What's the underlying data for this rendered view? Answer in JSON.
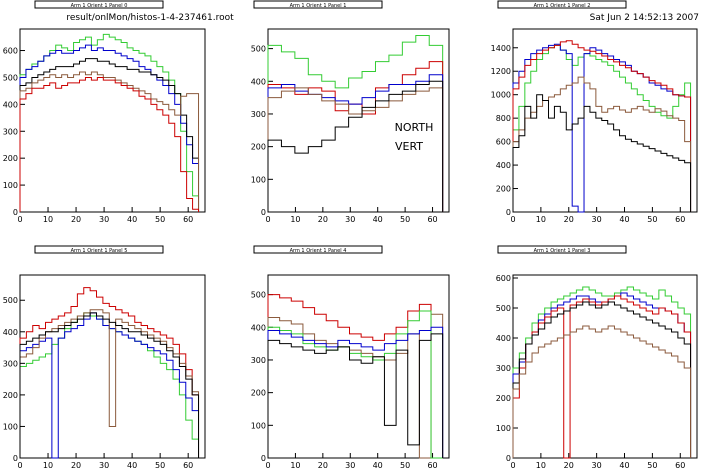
{
  "header": {
    "file": "result/onlMon/histos-1-4-237461.root",
    "date": "Sat Jun  2 14:52:13 2007"
  },
  "annotation": {
    "line1": "NORTH",
    "line2": "VERT"
  },
  "colors": {
    "black": "#000000",
    "red": "#cc0000",
    "green": "#33cc33",
    "blue": "#0000cc",
    "brown": "#8b5a3c"
  },
  "chart_data": [
    {
      "type": "line",
      "title": "Arm 1 Orient 1 Panel 0",
      "xlim": [
        0,
        66
      ],
      "ylim": [
        0,
        680
      ],
      "xticks": [
        0,
        10,
        20,
        30,
        40,
        50,
        60
      ],
      "yticks": [
        0,
        100,
        200,
        300,
        400,
        500,
        600
      ],
      "series": [
        {
          "color": "green",
          "values": [
            510,
            530,
            550,
            560,
            580,
            600,
            620,
            610,
            600,
            630,
            640,
            650,
            620,
            640,
            660,
            650,
            640,
            630,
            610,
            600,
            590,
            580,
            560,
            540,
            520,
            490,
            440,
            300,
            150,
            60
          ]
        },
        {
          "color": "blue",
          "values": [
            500,
            530,
            540,
            560,
            580,
            590,
            600,
            590,
            590,
            600,
            610,
            620,
            600,
            610,
            600,
            600,
            590,
            580,
            570,
            560,
            540,
            530,
            510,
            490,
            470,
            440,
            400,
            330,
            250,
            180
          ]
        },
        {
          "color": "black",
          "values": [
            470,
            480,
            500,
            510,
            520,
            530,
            540,
            540,
            540,
            550,
            560,
            570,
            570,
            560,
            560,
            550,
            540,
            540,
            530,
            530,
            520,
            520,
            510,
            500,
            490,
            470,
            440,
            360,
            280,
            200
          ]
        },
        {
          "color": "brown",
          "values": [
            450,
            460,
            480,
            490,
            500,
            510,
            500,
            510,
            500,
            510,
            520,
            510,
            520,
            510,
            500,
            500,
            490,
            480,
            470,
            460,
            450,
            440,
            420,
            410,
            400,
            380,
            360,
            430,
            440,
            440
          ]
        },
        {
          "color": "red",
          "values": [
            420,
            440,
            460,
            460,
            470,
            480,
            460,
            470,
            480,
            480,
            490,
            500,
            490,
            500,
            490,
            490,
            480,
            470,
            460,
            450,
            430,
            420,
            400,
            380,
            360,
            330,
            280,
            150,
            50,
            10
          ]
        }
      ]
    },
    {
      "type": "line",
      "title": "Arm 1 Orient 1 Panel 1",
      "xlim": [
        0,
        66
      ],
      "ylim": [
        0,
        560
      ],
      "xticks": [
        0,
        10,
        20,
        30,
        40,
        50,
        60
      ],
      "yticks": [
        0,
        100,
        200,
        300,
        400,
        500
      ],
      "series": [
        {
          "color": "green",
          "values": [
            510,
            490,
            470,
            420,
            400,
            380,
            410,
            430,
            460,
            480,
            520,
            540,
            510
          ]
        },
        {
          "color": "red",
          "values": [
            390,
            380,
            360,
            380,
            370,
            310,
            330,
            300,
            380,
            390,
            420,
            440,
            460
          ]
        },
        {
          "color": "blue",
          "values": [
            380,
            390,
            370,
            360,
            350,
            340,
            330,
            350,
            370,
            390,
            390,
            400,
            420
          ]
        },
        {
          "color": "brown",
          "values": [
            350,
            370,
            380,
            360,
            340,
            330,
            300,
            310,
            320,
            340,
            360,
            370,
            380
          ]
        },
        {
          "color": "black",
          "values": [
            220,
            200,
            180,
            200,
            220,
            260,
            290,
            320,
            340,
            360,
            370,
            390,
            400
          ]
        }
      ]
    },
    {
      "type": "line",
      "title": "Arm 1 Orient 1 Panel 2",
      "xlim": [
        0,
        66
      ],
      "ylim": [
        0,
        1560
      ],
      "xticks": [
        0,
        10,
        20,
        30,
        40,
        50,
        60
      ],
      "yticks": [
        0,
        200,
        400,
        600,
        800,
        1000,
        1200,
        1400
      ],
      "series": [
        {
          "color": "green",
          "values": [
            700,
            900,
            1100,
            1200,
            1300,
            1350,
            1400,
            1420,
            1380,
            1300,
            1250,
            1320,
            1350,
            1330,
            1300,
            1280,
            1250,
            1200,
            1150,
            1100,
            1050,
            1000,
            950,
            900,
            850,
            820,
            800,
            900,
            1000,
            1100
          ]
        },
        {
          "color": "blue",
          "values": [
            1100,
            1200,
            1300,
            1350,
            1380,
            1400,
            1420,
            1430,
            1380,
            1350,
            50,
            0,
            1350,
            1400,
            1380,
            1350,
            1330,
            1300,
            1280,
            1250,
            1200,
            1180,
            1150,
            1100,
            1080,
            1050,
            1030,
            1000,
            990,
            980
          ]
        },
        {
          "color": "red",
          "values": [
            1050,
            1150,
            1250,
            1300,
            1350,
            1380,
            1400,
            1420,
            1450,
            1460,
            1430,
            1400,
            1380,
            1370,
            1350,
            1330,
            1300,
            1280,
            1250,
            1230,
            1200,
            1180,
            1150,
            1120,
            1100,
            1080,
            1050,
            1000,
            990,
            980
          ]
        },
        {
          "color": "brown",
          "values": [
            600,
            700,
            800,
            850,
            900,
            950,
            980,
            1000,
            1050,
            1080,
            1100,
            1150,
            1100,
            1050,
            900,
            850,
            880,
            900,
            870,
            850,
            880,
            900,
            870,
            850,
            880,
            860,
            820,
            800,
            780,
            600
          ]
        },
        {
          "color": "black",
          "values": [
            550,
            650,
            900,
            800,
            1000,
            950,
            800,
            900,
            850,
            700,
            750,
            800,
            900,
            850,
            800,
            780,
            750,
            700,
            650,
            620,
            600,
            580,
            560,
            540,
            520,
            500,
            480,
            460,
            440,
            420
          ]
        }
      ]
    },
    {
      "type": "line",
      "title": "Arm 1 Orient 1 Panel 5",
      "xlim": [
        0,
        66
      ],
      "ylim": [
        0,
        580
      ],
      "xticks": [
        0,
        10,
        20,
        30,
        40,
        50,
        60
      ],
      "yticks": [
        0,
        100,
        200,
        300,
        400,
        500
      ],
      "series": [
        {
          "color": "red",
          "values": [
            380,
            400,
            420,
            410,
            430,
            440,
            450,
            460,
            480,
            520,
            540,
            530,
            510,
            490,
            480,
            470,
            460,
            450,
            430,
            420,
            410,
            400,
            390,
            380,
            360,
            330,
            280,
            200
          ]
        },
        {
          "color": "green",
          "values": [
            290,
            300,
            310,
            320,
            330,
            360,
            380,
            410,
            430,
            450,
            460,
            450,
            440,
            420,
            410,
            400,
            390,
            380,
            370,
            360,
            340,
            320,
            300,
            280,
            250,
            200,
            120,
            60
          ]
        },
        {
          "color": "blue",
          "values": [
            340,
            350,
            360,
            370,
            380,
            0,
            380,
            400,
            410,
            420,
            440,
            460,
            440,
            420,
            410,
            400,
            390,
            380,
            370,
            360,
            350,
            340,
            330,
            310,
            280,
            240,
            190,
            150
          ]
        },
        {
          "color": "brown",
          "values": [
            320,
            330,
            350,
            380,
            400,
            410,
            420,
            430,
            440,
            450,
            460,
            470,
            470,
            460,
            100,
            440,
            430,
            420,
            410,
            400,
            390,
            380,
            370,
            350,
            330,
            300,
            260,
            210
          ]
        },
        {
          "color": "black",
          "values": [
            360,
            370,
            380,
            390,
            400,
            400,
            410,
            420,
            430,
            440,
            450,
            460,
            450,
            440,
            430,
            420,
            410,
            400,
            400,
            390,
            380,
            370,
            360,
            340,
            320,
            290,
            250,
            200
          ]
        }
      ]
    },
    {
      "type": "line",
      "title": "Arm 1 Orient 1 Panel 4",
      "xlim": [
        0,
        66
      ],
      "ylim": [
        0,
        560
      ],
      "xticks": [
        0,
        10,
        20,
        30,
        40,
        50,
        60
      ],
      "yticks": [
        0,
        100,
        200,
        300,
        400,
        500
      ],
      "series": [
        {
          "color": "red",
          "values": [
            500,
            490,
            480,
            460,
            440,
            420,
            400,
            380,
            370,
            360,
            380,
            400,
            450,
            470,
            0
          ]
        },
        {
          "color": "brown",
          "values": [
            430,
            420,
            410,
            380,
            360,
            350,
            340,
            330,
            320,
            310,
            300,
            320,
            380,
            0,
            440
          ]
        },
        {
          "color": "green",
          "values": [
            400,
            390,
            380,
            350,
            340,
            330,
            340,
            320,
            310,
            300,
            320,
            380,
            420,
            450,
            0
          ]
        },
        {
          "color": "blue",
          "values": [
            390,
            380,
            370,
            360,
            350,
            340,
            360,
            350,
            340,
            330,
            350,
            360,
            380,
            390,
            400
          ]
        },
        {
          "color": "black",
          "values": [
            360,
            350,
            340,
            330,
            320,
            330,
            340,
            300,
            290,
            310,
            100,
            330,
            40,
            360,
            380
          ]
        }
      ]
    },
    {
      "type": "line",
      "title": "Arm 1 Orient 1 Panel 3",
      "xlim": [
        0,
        66
      ],
      "ylim": [
        0,
        610
      ],
      "xticks": [
        0,
        10,
        20,
        30,
        40,
        50,
        60
      ],
      "yticks": [
        0,
        100,
        200,
        300,
        400,
        500,
        600
      ],
      "series": [
        {
          "color": "green",
          "values": [
            300,
            350,
            400,
            450,
            480,
            500,
            520,
            530,
            540,
            550,
            560,
            570,
            560,
            550,
            540,
            540,
            550,
            560,
            570,
            560,
            550,
            540,
            530,
            560,
            540,
            520,
            500,
            480
          ]
        },
        {
          "color": "blue",
          "values": [
            280,
            320,
            380,
            420,
            460,
            480,
            500,
            510,
            520,
            530,
            540,
            540,
            530,
            520,
            520,
            530,
            540,
            550,
            540,
            530,
            520,
            510,
            500,
            500,
            490,
            480,
            450,
            420
          ]
        },
        {
          "color": "red",
          "values": [
            200,
            300,
            380,
            420,
            450,
            470,
            490,
            500,
            0,
            510,
            520,
            530,
            520,
            510,
            520,
            530,
            540,
            530,
            520,
            510,
            500,
            490,
            480,
            500,
            490,
            480,
            450,
            420
          ]
        },
        {
          "color": "black",
          "values": [
            250,
            330,
            380,
            410,
            430,
            450,
            470,
            480,
            490,
            500,
            510,
            520,
            510,
            500,
            510,
            520,
            510,
            500,
            490,
            480,
            470,
            460,
            450,
            440,
            430,
            420,
            400,
            380
          ]
        },
        {
          "color": "brown",
          "values": [
            230,
            280,
            320,
            350,
            370,
            380,
            390,
            400,
            410,
            420,
            430,
            440,
            430,
            420,
            430,
            440,
            430,
            420,
            410,
            400,
            390,
            380,
            370,
            360,
            350,
            340,
            320,
            300
          ]
        }
      ]
    }
  ]
}
